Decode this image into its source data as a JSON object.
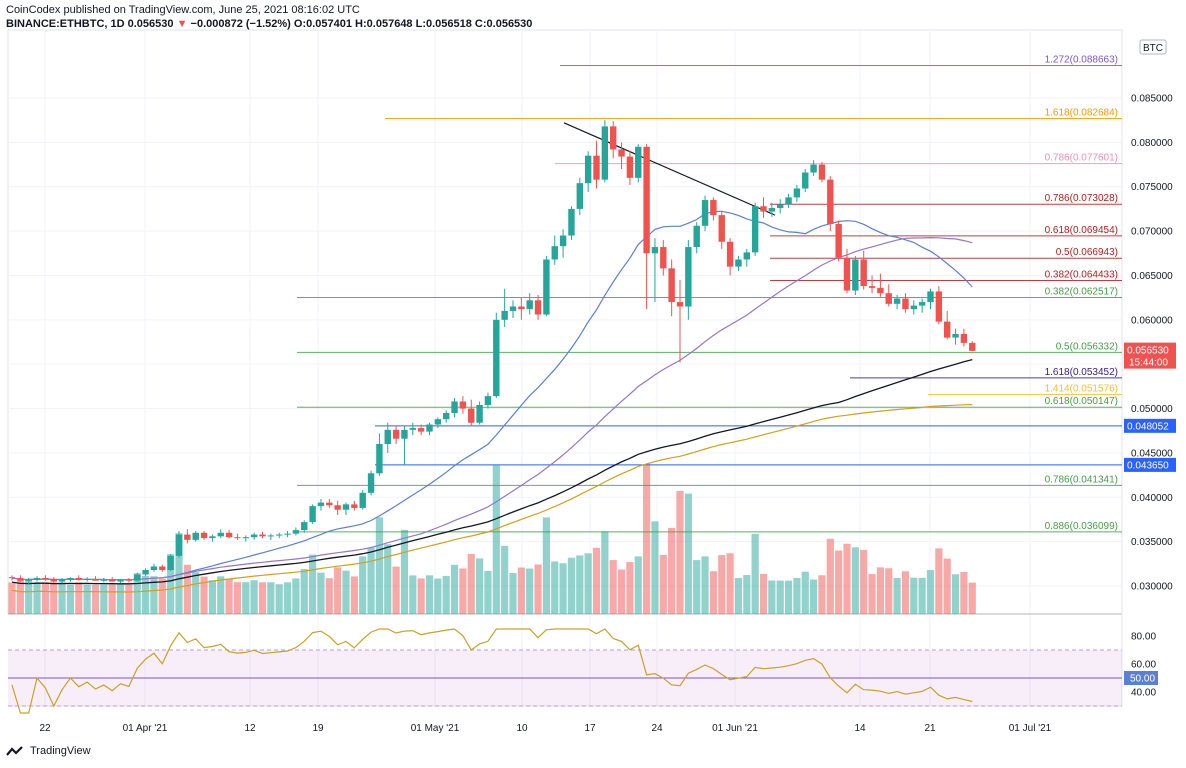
{
  "header": {
    "publisher_line": "CoinCodex published on TradingView.com, June 25, 2021 08:16:02 UTC",
    "symbol": "BINANCE:ETHBTC, 1D",
    "last": "0.056530",
    "change": "−0.000872 (−1.52%)",
    "ohlc": "O:0.057401 H:0.057648 L:0.056518 C:0.056530"
  },
  "currency_label": "BTC",
  "price_tag": {
    "price": "0.056530",
    "countdown": "15:44:00"
  },
  "footer": {
    "brand": "TradingView"
  },
  "colors": {
    "up": "#26a69a",
    "down": "#ef5350",
    "blue_line": "#2962ff",
    "violet": "#9c27b0"
  },
  "chart_data": {
    "type": "candlestick",
    "y_axis_ticks": [
      "0.085000",
      "0.080000",
      "0.075000",
      "0.070000",
      "0.065000",
      "0.060000",
      "0.055000",
      "0.050000",
      "0.045000",
      "0.040000",
      "0.035000",
      "0.030000"
    ],
    "x_axis_ticks": [
      "22",
      "01 Apr '21",
      "12",
      "19",
      "01 May '21",
      "10",
      "17",
      "24",
      "01 Jun '21",
      "14",
      "21",
      "01 Jul '21"
    ],
    "rsi_ticks": [
      "80.00",
      "60.00",
      "50.00",
      "40.00"
    ],
    "highlighted_levels": [
      "0.048052",
      "0.043650"
    ],
    "fib_levels": [
      {
        "label": "1.272(0.088663)",
        "value": 0.088663,
        "color": "#7e57c2"
      },
      {
        "label": "1.618(0.082684)",
        "value": 0.082684,
        "color": "#ff9800"
      },
      {
        "label": "0.786(0.077601)",
        "value": 0.077601,
        "color": "#f48fb1"
      },
      {
        "label": "0.786(0.073028)",
        "value": 0.073028,
        "color": "#b71c1c"
      },
      {
        "label": "0.618(0.069454)",
        "value": 0.069454,
        "color": "#b71c1c"
      },
      {
        "label": "0.5(0.066943)",
        "value": 0.066943,
        "color": "#b71c1c"
      },
      {
        "label": "0.382(0.064433)",
        "value": 0.064433,
        "color": "#b71c1c"
      },
      {
        "label": "0.382(0.062517)",
        "value": 0.062517,
        "color": "#43a047"
      },
      {
        "label": "0.5(0.056332)",
        "value": 0.056332,
        "color": "#43a047"
      },
      {
        "label": "1.618(0.053452)",
        "value": 0.053452,
        "color": "#311b92"
      },
      {
        "label": "1.414(0.051576)",
        "value": 0.051576,
        "color": "#fbc02d"
      },
      {
        "label": "0.618(0.050147)",
        "value": 0.050147,
        "color": "#43a047"
      },
      {
        "label": "0.786(0.041341)",
        "value": 0.041341,
        "color": "#43a047"
      },
      {
        "label": "0.886(0.036099)",
        "value": 0.036099,
        "color": "#43a047"
      }
    ],
    "candles": [
      [
        0.031,
        0.0312,
        0.0306,
        0.0309
      ],
      [
        0.0309,
        0.0312,
        0.0305,
        0.0306
      ],
      [
        0.0306,
        0.0309,
        0.0302,
        0.0307
      ],
      [
        0.0307,
        0.0311,
        0.0305,
        0.0309
      ],
      [
        0.0309,
        0.0312,
        0.0306,
        0.0308
      ],
      [
        0.0308,
        0.031,
        0.0304,
        0.0305
      ],
      [
        0.0305,
        0.0309,
        0.0303,
        0.0307
      ],
      [
        0.0307,
        0.031,
        0.0305,
        0.0309
      ],
      [
        0.0309,
        0.0312,
        0.0306,
        0.0307
      ],
      [
        0.0307,
        0.031,
        0.0305,
        0.0308
      ],
      [
        0.0308,
        0.0311,
        0.0306,
        0.0306
      ],
      [
        0.0306,
        0.0309,
        0.0304,
        0.0307
      ],
      [
        0.0307,
        0.031,
        0.0305,
        0.0305
      ],
      [
        0.0305,
        0.0308,
        0.0303,
        0.0307
      ],
      [
        0.0307,
        0.0309,
        0.0304,
        0.0306
      ],
      [
        0.0306,
        0.0315,
        0.0305,
        0.0313
      ],
      [
        0.0313,
        0.032,
        0.0311,
        0.0318
      ],
      [
        0.0318,
        0.0325,
        0.0316,
        0.0322
      ],
      [
        0.0322,
        0.0324,
        0.0316,
        0.0318
      ],
      [
        0.0318,
        0.0336,
        0.0317,
        0.0334
      ],
      [
        0.0334,
        0.0362,
        0.0332,
        0.0358
      ],
      [
        0.0358,
        0.0364,
        0.0348,
        0.0352
      ],
      [
        0.0352,
        0.0362,
        0.035,
        0.036
      ],
      [
        0.036,
        0.0362,
        0.0352,
        0.0354
      ],
      [
        0.0354,
        0.0358,
        0.035,
        0.0356
      ],
      [
        0.0356,
        0.0364,
        0.0354,
        0.036
      ],
      [
        0.036,
        0.0363,
        0.0354,
        0.0355
      ],
      [
        0.0355,
        0.0359,
        0.0352,
        0.0354
      ],
      [
        0.0354,
        0.0357,
        0.035,
        0.0355
      ],
      [
        0.0355,
        0.036,
        0.0352,
        0.0358
      ],
      [
        0.0358,
        0.0361,
        0.0354,
        0.0356
      ],
      [
        0.0356,
        0.0359,
        0.0352,
        0.0357
      ],
      [
        0.0357,
        0.036,
        0.0354,
        0.0358
      ],
      [
        0.0358,
        0.0362,
        0.0355,
        0.0359
      ],
      [
        0.0359,
        0.0366,
        0.0357,
        0.0363
      ],
      [
        0.0363,
        0.0374,
        0.036,
        0.0372
      ],
      [
        0.0372,
        0.0392,
        0.037,
        0.039
      ],
      [
        0.039,
        0.0398,
        0.0385,
        0.0394
      ],
      [
        0.0394,
        0.0398,
        0.0388,
        0.0391
      ],
      [
        0.0391,
        0.0396,
        0.038,
        0.0386
      ],
      [
        0.0386,
        0.0394,
        0.038,
        0.0392
      ],
      [
        0.0392,
        0.0396,
        0.0385,
        0.0388
      ],
      [
        0.0388,
        0.0408,
        0.0386,
        0.0405
      ],
      [
        0.0405,
        0.043,
        0.0402,
        0.0427
      ],
      [
        0.0427,
        0.0472,
        0.0424,
        0.046
      ],
      [
        0.046,
        0.0484,
        0.045,
        0.0476
      ],
      [
        0.0476,
        0.048,
        0.046,
        0.0466
      ],
      [
        0.0466,
        0.048,
        0.0436,
        0.0476
      ],
      [
        0.0476,
        0.0484,
        0.047,
        0.0478
      ],
      [
        0.0478,
        0.0482,
        0.047,
        0.0474
      ],
      [
        0.0474,
        0.0484,
        0.047,
        0.0482
      ],
      [
        0.0482,
        0.049,
        0.0478,
        0.0488
      ],
      [
        0.0488,
        0.0498,
        0.0484,
        0.0495
      ],
      [
        0.0495,
        0.0512,
        0.049,
        0.0508
      ],
      [
        0.0508,
        0.0514,
        0.0494,
        0.05
      ],
      [
        0.05,
        0.051,
        0.048,
        0.0484
      ],
      [
        0.0484,
        0.0508,
        0.0482,
        0.0504
      ],
      [
        0.0504,
        0.0518,
        0.05,
        0.0514
      ],
      [
        0.0514,
        0.0608,
        0.0512,
        0.06
      ],
      [
        0.06,
        0.0635,
        0.0592,
        0.061
      ],
      [
        0.061,
        0.0622,
        0.0602,
        0.0615
      ],
      [
        0.0615,
        0.0625,
        0.06,
        0.0612
      ],
      [
        0.0612,
        0.063,
        0.0606,
        0.0622
      ],
      [
        0.0622,
        0.0628,
        0.06,
        0.0606
      ],
      [
        0.0606,
        0.0672,
        0.0604,
        0.0668
      ],
      [
        0.0668,
        0.0695,
        0.0662,
        0.0683
      ],
      [
        0.0683,
        0.0702,
        0.067,
        0.0695
      ],
      [
        0.0695,
        0.0728,
        0.069,
        0.0725
      ],
      [
        0.0725,
        0.076,
        0.0718,
        0.0754
      ],
      [
        0.0754,
        0.079,
        0.0744,
        0.0785
      ],
      [
        0.0785,
        0.0802,
        0.0748,
        0.0758
      ],
      [
        0.0758,
        0.0825,
        0.0755,
        0.0818
      ],
      [
        0.0818,
        0.0824,
        0.0782,
        0.0792
      ],
      [
        0.0792,
        0.08,
        0.077,
        0.0784
      ],
      [
        0.0784,
        0.079,
        0.0752,
        0.076
      ],
      [
        0.076,
        0.0798,
        0.0755,
        0.0795
      ],
      [
        0.0795,
        0.0798,
        0.0612,
        0.0675
      ],
      [
        0.0675,
        0.0692,
        0.062,
        0.0682
      ],
      [
        0.0682,
        0.069,
        0.065,
        0.0658
      ],
      [
        0.0658,
        0.0668,
        0.0604,
        0.062
      ],
      [
        0.062,
        0.0645,
        0.0552,
        0.0615
      ],
      [
        0.0615,
        0.069,
        0.06,
        0.0682
      ],
      [
        0.0682,
        0.071,
        0.0675,
        0.0706
      ],
      [
        0.0706,
        0.074,
        0.07,
        0.0735
      ],
      [
        0.0735,
        0.0738,
        0.0712,
        0.0718
      ],
      [
        0.0718,
        0.0722,
        0.068,
        0.0688
      ],
      [
        0.0688,
        0.0692,
        0.065,
        0.066
      ],
      [
        0.066,
        0.0672,
        0.0655,
        0.0668
      ],
      [
        0.0668,
        0.068,
        0.066,
        0.0676
      ],
      [
        0.0676,
        0.0732,
        0.0672,
        0.0728
      ],
      [
        0.0728,
        0.0738,
        0.0715,
        0.0722
      ],
      [
        0.0722,
        0.0732,
        0.0716,
        0.0726
      ],
      [
        0.0726,
        0.0736,
        0.072,
        0.073
      ],
      [
        0.073,
        0.0742,
        0.0726,
        0.0738
      ],
      [
        0.0738,
        0.0752,
        0.0733,
        0.0748
      ],
      [
        0.0748,
        0.077,
        0.0744,
        0.0766
      ],
      [
        0.0766,
        0.078,
        0.0762,
        0.0775
      ],
      [
        0.0775,
        0.0778,
        0.0755,
        0.0758
      ],
      [
        0.0758,
        0.0762,
        0.07,
        0.0708
      ],
      [
        0.0708,
        0.0712,
        0.0666,
        0.067
      ],
      [
        0.067,
        0.068,
        0.063,
        0.0633
      ],
      [
        0.0633,
        0.0672,
        0.0628,
        0.0668
      ],
      [
        0.0668,
        0.0678,
        0.0634,
        0.0638
      ],
      [
        0.0638,
        0.065,
        0.063,
        0.0636
      ],
      [
        0.0636,
        0.0652,
        0.0626,
        0.063
      ],
      [
        0.063,
        0.064,
        0.0615,
        0.0618
      ],
      [
        0.0618,
        0.0628,
        0.0612,
        0.0624
      ],
      [
        0.0624,
        0.063,
        0.0608,
        0.0612
      ],
      [
        0.0612,
        0.0622,
        0.0606,
        0.0616
      ],
      [
        0.0616,
        0.0624,
        0.0608,
        0.062
      ],
      [
        0.062,
        0.0635,
        0.0612,
        0.0632
      ],
      [
        0.0632,
        0.0638,
        0.0595,
        0.0598
      ],
      [
        0.0598,
        0.061,
        0.0578,
        0.058
      ],
      [
        0.058,
        0.059,
        0.0572,
        0.0584
      ],
      [
        0.0584,
        0.059,
        0.057,
        0.0574
      ],
      [
        0.0574,
        0.0576,
        0.0565,
        0.0565
      ]
    ]
  }
}
